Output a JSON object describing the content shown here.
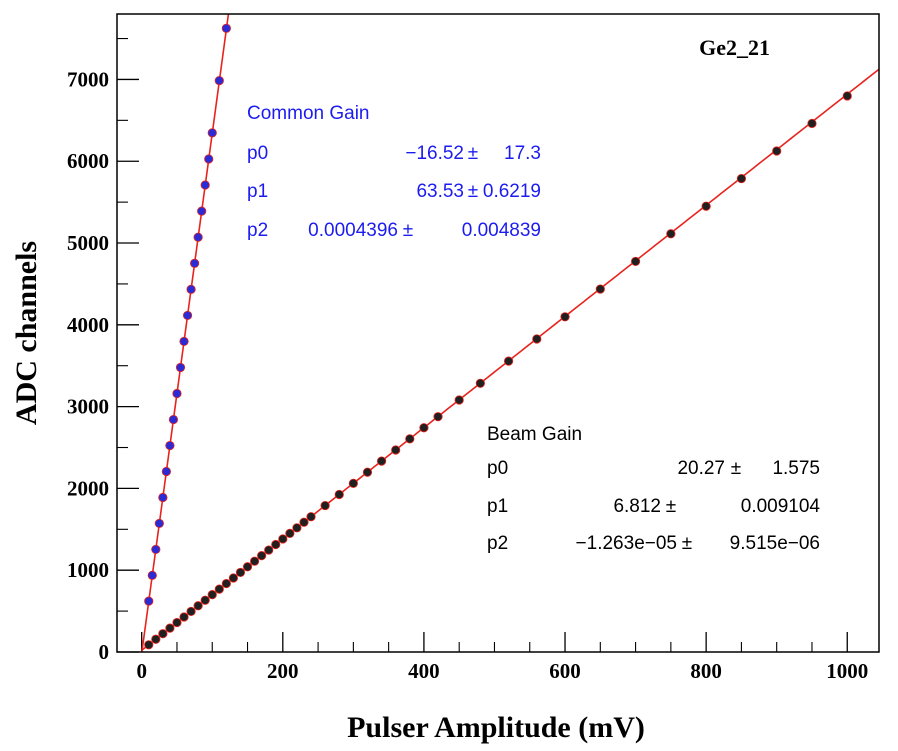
{
  "chart_data": {
    "type": "scatter",
    "title": "Ge2_21",
    "xlabel": "Pulser Amplitude (mV)",
    "ylabel": "ADC channels",
    "xlim": [
      -35,
      1045
    ],
    "ylim": [
      0,
      7800
    ],
    "x_ticks": [
      0,
      200,
      400,
      600,
      800,
      1000
    ],
    "y_ticks": [
      0,
      1000,
      2000,
      3000,
      4000,
      5000,
      6000,
      7000
    ],
    "grid": false,
    "colors": {
      "fit_line": "#e8231c",
      "common_points": "#2b2bd6",
      "beam_points": "#202020",
      "common_text": "#1c1cf0",
      "beam_text": "#000000"
    },
    "series": [
      {
        "name": "Common Gain",
        "x": [
          10,
          15,
          20,
          25,
          30,
          35,
          40,
          45,
          50,
          55,
          60,
          65,
          70,
          75,
          80,
          85,
          90,
          95,
          100,
          110,
          120
        ],
        "y": [
          622,
          937,
          1254,
          1572,
          1889,
          2207,
          2524,
          2842,
          3160,
          3479,
          3797,
          4115,
          4434,
          4752,
          5071,
          5390,
          5709,
          6028,
          6347,
          6986,
          7625
        ],
        "fit": {
          "title": "Common Gain",
          "params": [
            {
              "name": "p0",
              "value": "−16.52",
              "error": "17.3"
            },
            {
              "name": "p1",
              "value": "63.53",
              "error": "0.6219"
            },
            {
              "name": "p2",
              "value": "0.0004396",
              "error": "0.004839"
            }
          ],
          "coefficients": [
            -16.52,
            63.53,
            0.0004396
          ]
        }
      },
      {
        "name": "Beam Gain",
        "x": [
          10,
          20,
          30,
          40,
          50,
          60,
          70,
          80,
          90,
          100,
          110,
          120,
          130,
          140,
          150,
          160,
          170,
          180,
          190,
          200,
          210,
          220,
          230,
          240,
          260,
          280,
          300,
          320,
          340,
          360,
          380,
          400,
          420,
          450,
          480,
          520,
          560,
          600,
          650,
          700,
          750,
          800,
          850,
          900,
          950,
          1000
        ],
        "y": [
          88,
          156,
          224,
          292,
          360,
          428,
          496,
          565,
          633,
          701,
          769,
          837,
          905,
          973,
          1042,
          1110,
          1178,
          1246,
          1314,
          1382,
          1450,
          1518,
          1586,
          1654,
          1790,
          1926,
          2062,
          2198,
          2334,
          2470,
          2606,
          2742,
          2877,
          3081,
          3285,
          3556,
          3827,
          4098,
          4437,
          4775,
          5113,
          5450,
          5788,
          6125,
          6462,
          6798
        ],
        "fit": {
          "title": "Beam Gain",
          "params": [
            {
              "name": "p0",
              "value": "20.27",
              "error": "1.575"
            },
            {
              "name": "p1",
              "value": "6.812",
              "error": "0.009104"
            },
            {
              "name": "p2",
              "value": "−1.263e−05",
              "error": "9.515e−06"
            }
          ],
          "coefficients": [
            20.27,
            6.812,
            -1.263e-05
          ]
        }
      }
    ]
  }
}
